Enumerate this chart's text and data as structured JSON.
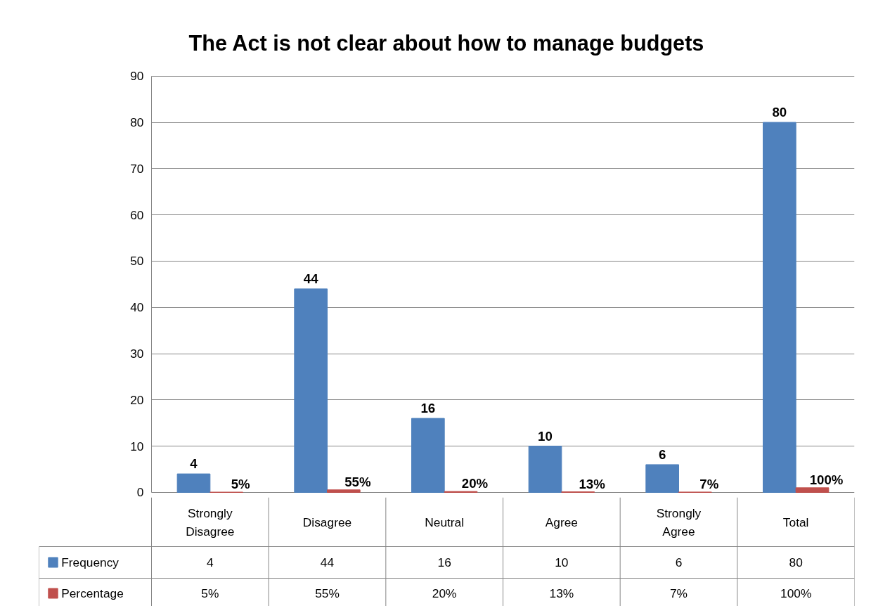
{
  "chart_data": {
    "type": "bar",
    "title": "The Act is not clear about how to manage budgets",
    "categories": [
      "Strongly Disagree",
      "Disagree",
      "Neutral",
      "Agree",
      "Strongly Agree",
      "Total"
    ],
    "series": [
      {
        "name": "Frequency",
        "color": "#4f81bd",
        "values": [
          4,
          44,
          16,
          10,
          6,
          80
        ],
        "value_labels": [
          "4",
          "44",
          "16",
          "10",
          "6",
          "80"
        ]
      },
      {
        "name": "Percentage",
        "color": "#c0504d",
        "values": [
          0.05,
          0.55,
          0.2,
          0.13,
          0.07,
          1
        ],
        "value_labels": [
          "5%",
          "55%",
          "20%",
          "13%",
          "7%",
          "100%"
        ]
      }
    ],
    "ylim": [
      0,
      90
    ],
    "yticks": [
      0,
      10,
      20,
      30,
      40,
      50,
      60,
      70,
      80,
      90
    ],
    "grid": "y",
    "legend": "bottom"
  }
}
